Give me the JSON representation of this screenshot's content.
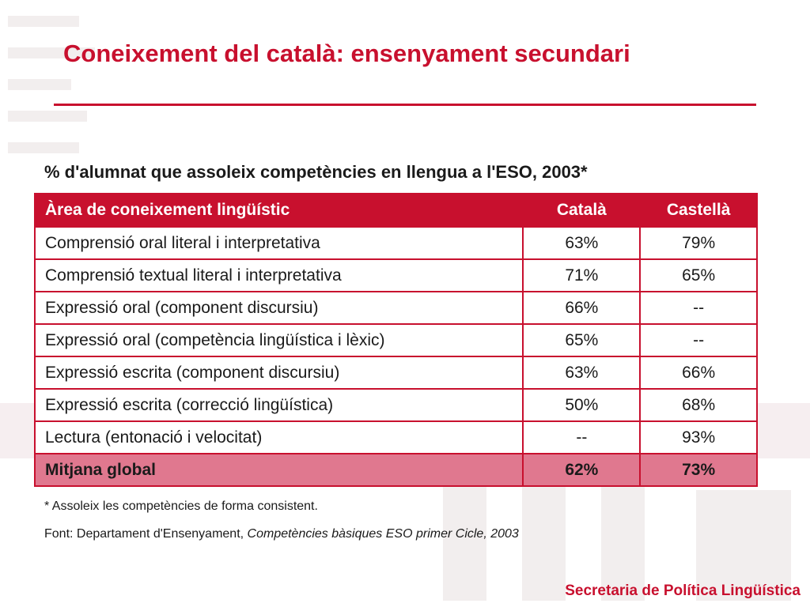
{
  "slide": {
    "title": "Coneixement del català: ensenyament secundari",
    "subtitle": "% d'alumnat que assoleix competències en llengua a l'ESO, 2003*",
    "note": "* Assoleix les competències de forma consistent.",
    "source_prefix": "Font: Departament d'Ensenyament, ",
    "source_italic": "Competències bàsiques ESO primer Cicle, 2003",
    "footer": "Secretaria de Política Lingüística"
  },
  "table": {
    "headers": [
      "Àrea de coneixement lingüístic",
      "Català",
      "Castellà"
    ],
    "rows": [
      [
        "Comprensió oral literal i interpretativa",
        "63%",
        "79%"
      ],
      [
        "Comprensió textual literal i interpretativa",
        "71%",
        "65%"
      ],
      [
        "Expressió oral (component discursiu)",
        "66%",
        "--"
      ],
      [
        "Expressió oral (competència lingüística i lèxic)",
        "65%",
        "--"
      ],
      [
        "Expressió escrita (component discursiu)",
        "63%",
        "66%"
      ],
      [
        "Expressió escrita (correcció lingüística)",
        "50%",
        "68%"
      ],
      [
        "Lectura (entonació i velocitat)",
        "--",
        "93%"
      ]
    ],
    "total": [
      "Mitjana global",
      "62%",
      "73%"
    ]
  },
  "colors": {
    "accent": "#c8102e",
    "total_row": "#e0788f"
  }
}
